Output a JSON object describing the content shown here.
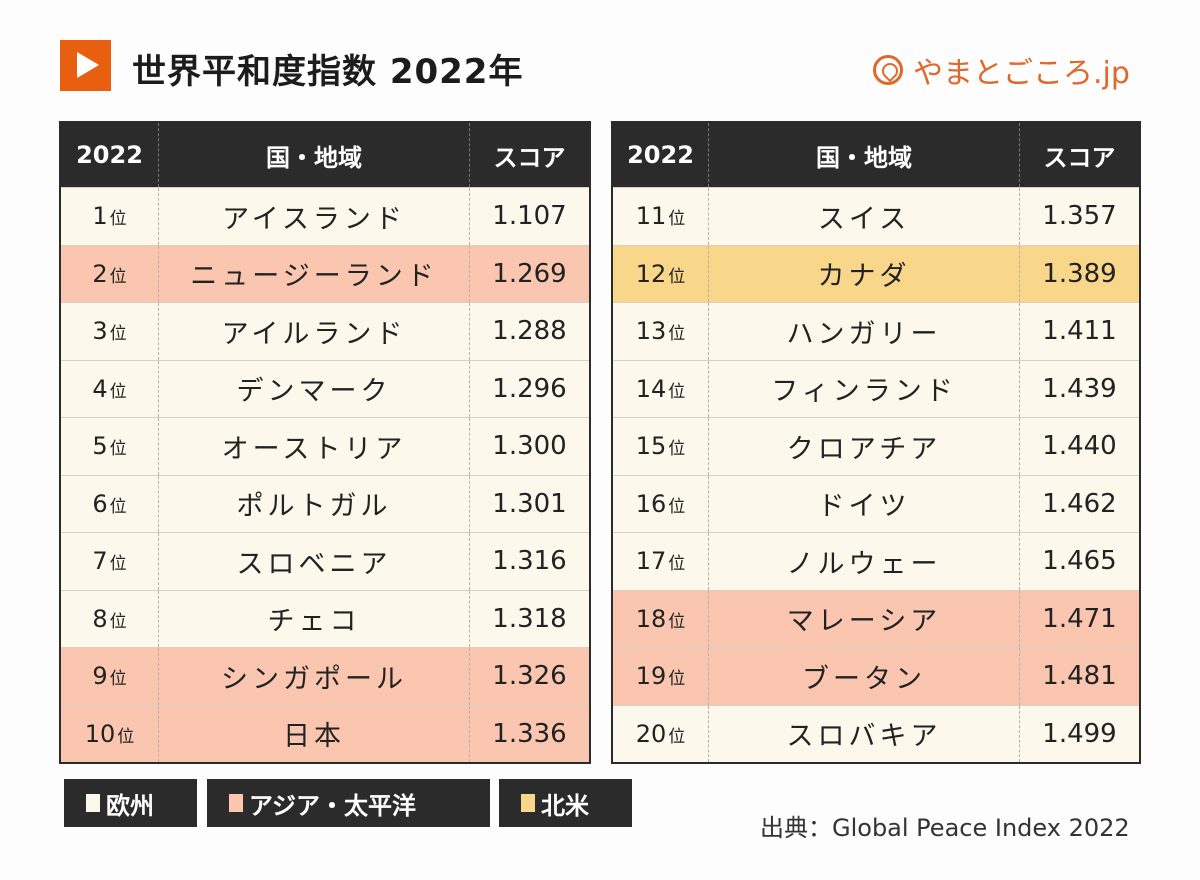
{
  "header": {
    "title": "世界平和度指数 2022年",
    "logo_text": "やまとごころ.jp",
    "icon": "play-icon"
  },
  "colors": {
    "accent": "#e8600f",
    "europe": "#fdf8ec",
    "asia_pacific": "#fbc6b0",
    "north_america": "#f8d68a",
    "header": "#2b2b2b"
  },
  "table_headers": {
    "rank": "2022",
    "country": "国・地域",
    "score": "スコア"
  },
  "rank_suffix": "位",
  "left_rows": [
    {
      "rank": "1",
      "country": "アイスランド",
      "score": "1.107",
      "region": "europe"
    },
    {
      "rank": "2",
      "country": "ニュージーランド",
      "score": "1.269",
      "region": "asia_pacific"
    },
    {
      "rank": "3",
      "country": "アイルランド",
      "score": "1.288",
      "region": "europe"
    },
    {
      "rank": "4",
      "country": "デンマーク",
      "score": "1.296",
      "region": "europe"
    },
    {
      "rank": "5",
      "country": "オーストリア",
      "score": "1.300",
      "region": "europe"
    },
    {
      "rank": "6",
      "country": "ポルトガル",
      "score": "1.301",
      "region": "europe"
    },
    {
      "rank": "7",
      "country": "スロベニア",
      "score": "1.316",
      "region": "europe"
    },
    {
      "rank": "8",
      "country": "チェコ",
      "score": "1.318",
      "region": "europe"
    },
    {
      "rank": "9",
      "country": "シンガポール",
      "score": "1.326",
      "region": "asia_pacific"
    },
    {
      "rank": "10",
      "country": "日本",
      "score": "1.336",
      "region": "asia_pacific"
    }
  ],
  "right_rows": [
    {
      "rank": "11",
      "country": "スイス",
      "score": "1.357",
      "region": "europe"
    },
    {
      "rank": "12",
      "country": "カナダ",
      "score": "1.389",
      "region": "north_america"
    },
    {
      "rank": "13",
      "country": "ハンガリー",
      "score": "1.411",
      "region": "europe"
    },
    {
      "rank": "14",
      "country": "フィンランド",
      "score": "1.439",
      "region": "europe"
    },
    {
      "rank": "15",
      "country": "クロアチア",
      "score": "1.440",
      "region": "europe"
    },
    {
      "rank": "16",
      "country": "ドイツ",
      "score": "1.462",
      "region": "europe"
    },
    {
      "rank": "17",
      "country": "ノルウェー",
      "score": "1.465",
      "region": "europe"
    },
    {
      "rank": "18",
      "country": "マレーシア",
      "score": "1.471",
      "region": "asia_pacific"
    },
    {
      "rank": "19",
      "country": "ブータン",
      "score": "1.481",
      "region": "asia_pacific"
    },
    {
      "rank": "20",
      "country": "スロバキア",
      "score": "1.499",
      "region": "europe"
    }
  ],
  "legend": [
    {
      "label": "欧州",
      "region": "europe"
    },
    {
      "label": "アジア・太平洋",
      "region": "asia_pacific"
    },
    {
      "label": "北米",
      "region": "north_america"
    }
  ],
  "source": "出典：Global Peace Index 2022"
}
